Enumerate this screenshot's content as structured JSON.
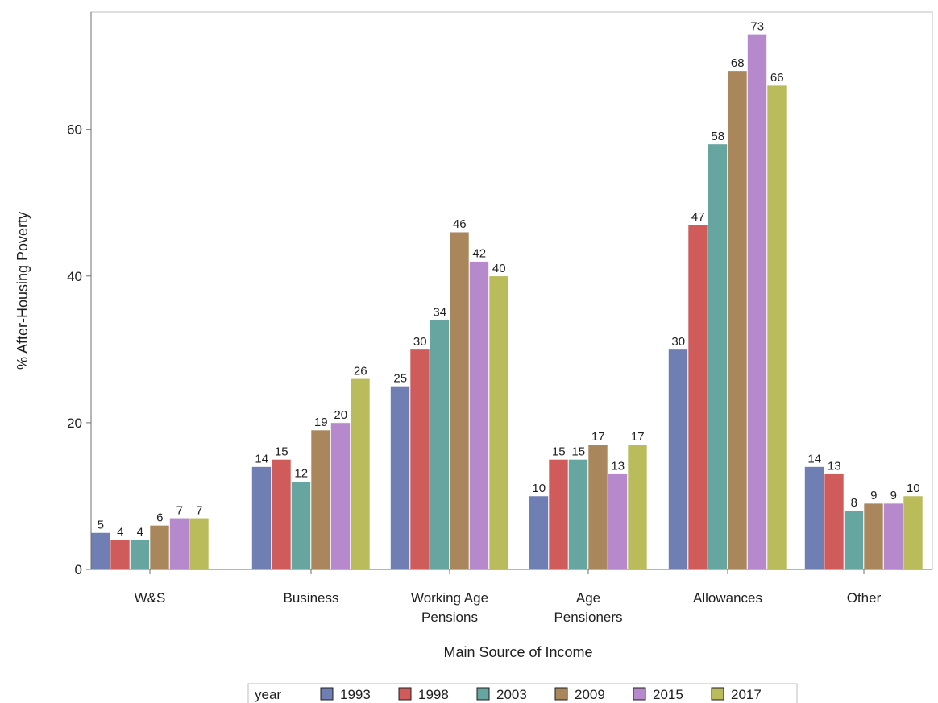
{
  "chart_data": {
    "type": "bar",
    "title": "",
    "xlabel": "Main Source of Income",
    "ylabel": "% After-Housing Poverty",
    "ylim": [
      0,
      76
    ],
    "yticks": [
      0,
      20,
      40,
      60
    ],
    "grid": false,
    "legend_position": "bottom",
    "legend_title": "year",
    "categories": [
      "W&S",
      "Business",
      "Working Age Pensions",
      "Age Pensioners",
      "Allowances",
      "Other"
    ],
    "series": [
      {
        "name": "1993",
        "color": "#6F7EB3",
        "values": [
          5,
          14,
          25,
          10,
          30,
          14
        ]
      },
      {
        "name": "1998",
        "color": "#D05B5B",
        "values": [
          4,
          15,
          30,
          15,
          47,
          13
        ]
      },
      {
        "name": "2003",
        "color": "#66A5A0",
        "values": [
          4,
          12,
          34,
          15,
          58,
          8
        ]
      },
      {
        "name": "2009",
        "color": "#A9865B",
        "values": [
          6,
          19,
          46,
          17,
          68,
          9
        ]
      },
      {
        "name": "2015",
        "color": "#B689CD",
        "values": [
          7,
          20,
          42,
          13,
          73,
          9
        ]
      },
      {
        "name": "2017",
        "color": "#BABC5C",
        "values": [
          7,
          26,
          40,
          17,
          66,
          10
        ]
      }
    ]
  }
}
